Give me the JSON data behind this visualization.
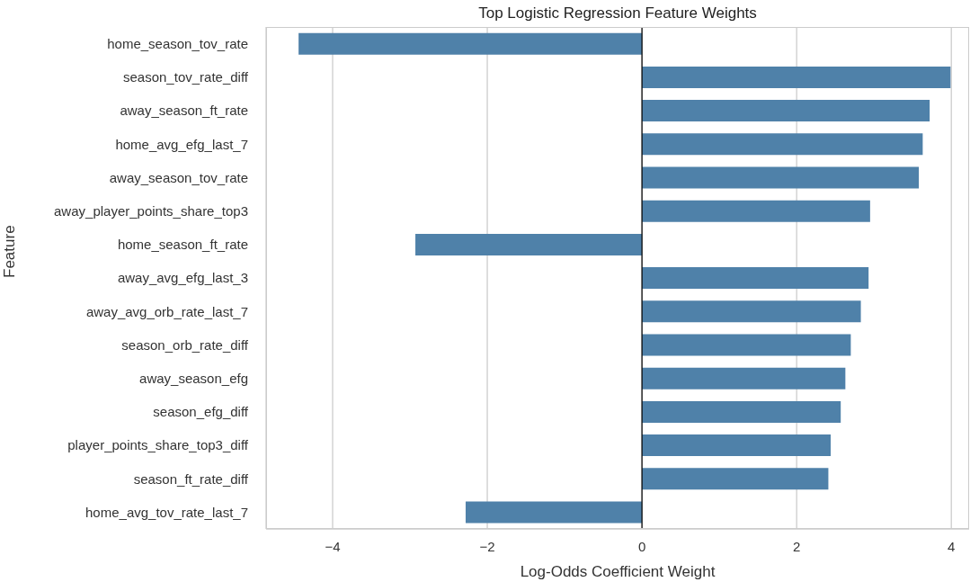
{
  "chart_data": {
    "type": "bar",
    "orientation": "horizontal",
    "title": "Top Logistic Regression Feature Weights",
    "xlabel": "Log-Odds Coefficient Weight",
    "ylabel": "Feature",
    "categories": [
      "home_season_tov_rate",
      "season_tov_rate_diff",
      "away_season_ft_rate",
      "home_avg_efg_last_7",
      "away_season_tov_rate",
      "away_player_points_share_top3",
      "home_season_ft_rate",
      "away_avg_efg_last_3",
      "away_avg_orb_rate_last_7",
      "season_orb_rate_diff",
      "away_season_efg",
      "season_efg_diff",
      "player_points_share_top3_diff",
      "season_ft_rate_diff",
      "home_avg_tov_rate_last_7"
    ],
    "values": [
      -4.44,
      3.99,
      3.72,
      3.63,
      3.58,
      2.95,
      -2.93,
      2.93,
      2.83,
      2.7,
      2.63,
      2.57,
      2.44,
      2.41,
      -2.28
    ],
    "color": "#4f81a9",
    "xlim": [
      -4.86,
      4.23
    ],
    "xticks": [
      {
        "value": -4,
        "label": "−4"
      },
      {
        "value": -2,
        "label": "−2"
      },
      0,
      2,
      4
    ],
    "grid": "x",
    "ref_lines": [
      {
        "axis": "x",
        "value": 0,
        "color": "#000000"
      }
    ]
  }
}
